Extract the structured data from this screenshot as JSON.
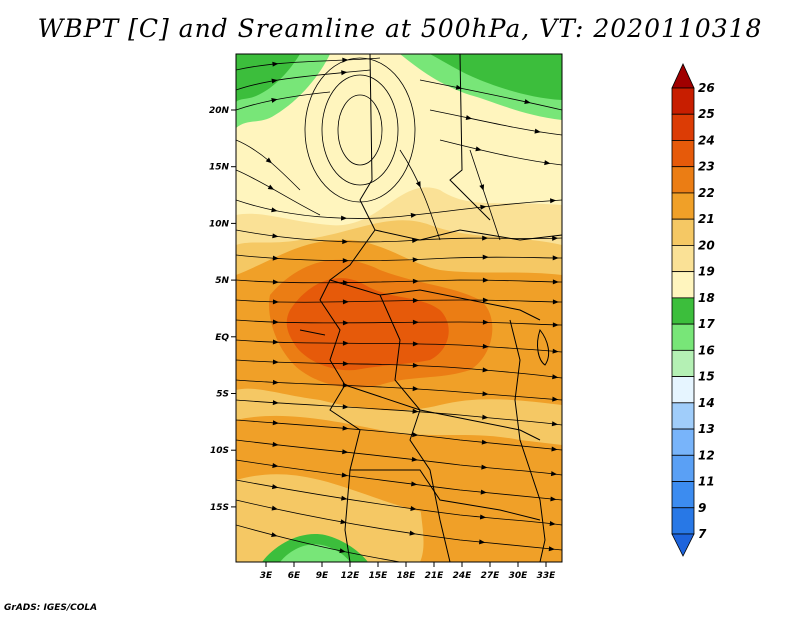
{
  "title": "WBPT [C] and Sreamline at 500hPa, VT: 2020110318",
  "credit": "GrADS: IGES/COLA",
  "map": {
    "lon_labels": [
      "3E",
      "6E",
      "9E",
      "12E",
      "15E",
      "18E",
      "21E",
      "24E",
      "27E",
      "30E",
      "33E"
    ],
    "lat_labels": [
      "20N",
      "15N",
      "10N",
      "5N",
      "EQ",
      "5S",
      "10S",
      "15S"
    ]
  },
  "colorbar": {
    "levels": [
      "7",
      "9",
      "11",
      "12",
      "13",
      "14",
      "15",
      "16",
      "17",
      "18",
      "19",
      "20",
      "21",
      "22",
      "23",
      "24",
      "25",
      "26"
    ],
    "colors": [
      "#1e64dc",
      "#2878e6",
      "#3c8cf0",
      "#5aa0f5",
      "#78b4fa",
      "#a0cdfa",
      "#e6f5ff",
      "#b4f0b4",
      "#78e678",
      "#3cbe3c",
      "#fff5be",
      "#fae196",
      "#f5c864",
      "#f0a028",
      "#eb7d14",
      "#e65a0a",
      "#dc3c05",
      "#c81e00",
      "#a00000"
    ]
  }
}
